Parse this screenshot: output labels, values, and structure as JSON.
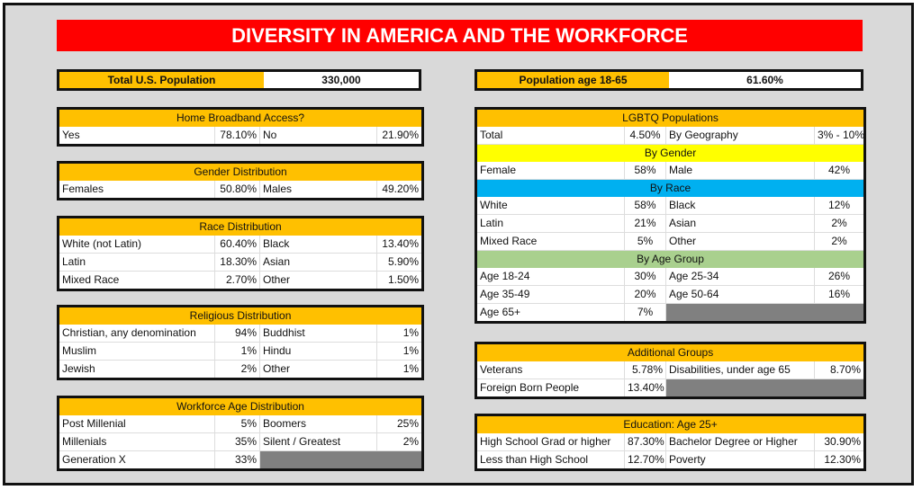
{
  "title": "DIVERSITY IN AMERICA AND THE WORKFORCE",
  "total_population": {
    "label": "Total U.S. Population",
    "value": "330,000"
  },
  "population_18_65": {
    "label": "Population age 18-65",
    "value": "61.60%"
  },
  "colors": {
    "header": "#ffc000",
    "title": "#ff0000",
    "by_gender": "#ffff00",
    "by_race": "#00b0f0",
    "by_age": "#a9d08e",
    "empty_cell": "#808080"
  },
  "sections": [
    {
      "id": "broadband",
      "side": "left",
      "top": 0,
      "header": "Home Broadband Access?",
      "rows": [
        [
          "Yes",
          "78.10%",
          "No",
          "21.90%"
        ]
      ]
    },
    {
      "id": "gender",
      "side": "left",
      "header": "Gender Distribution",
      "rows": [
        [
          "Females",
          "50.80%",
          "Males",
          "49.20%"
        ]
      ]
    },
    {
      "id": "race",
      "side": "left",
      "header": "Race Distribution",
      "rows": [
        [
          "White (not Latin)",
          "60.40%",
          "Black",
          "13.40%"
        ],
        [
          "Latin",
          "18.30%",
          "Asian",
          "5.90%"
        ],
        [
          "Mixed Race",
          "2.70%",
          "Other",
          "1.50%"
        ]
      ]
    },
    {
      "id": "religion",
      "side": "left",
      "header": "Religious Distribution",
      "rows": [
        [
          "Christian, any denomination",
          "94%",
          "Buddhist",
          "1%"
        ],
        [
          "Muslim",
          "1%",
          "Hindu",
          "1%"
        ],
        [
          "Jewish",
          "2%",
          "Other",
          "1%"
        ]
      ]
    },
    {
      "id": "workforce",
      "side": "left",
      "header": "Workforce Age Distribution",
      "rows": [
        [
          "Post Millenial",
          "5%",
          "Boomers",
          "25%"
        ],
        [
          "Millenials",
          "35%",
          "Silent / Greatest",
          "2%"
        ],
        [
          "Generation X",
          "33%"
        ]
      ]
    },
    {
      "id": "lgbtq",
      "side": "right",
      "center": true,
      "header": "LGBTQ Populations",
      "rows": [
        [
          "Total",
          "4.50%",
          "By Geography",
          "3% - 10%"
        ],
        {
          "sub": "By Gender",
          "color": "by_gender"
        },
        [
          "Female",
          "58%",
          "Male",
          "42%"
        ],
        {
          "sub": "By Race",
          "color": "by_race"
        },
        [
          "White",
          "58%",
          "Black",
          "12%"
        ],
        [
          "Latin",
          "21%",
          "Asian",
          "2%"
        ],
        [
          "Mixed Race",
          "5%",
          "Other",
          "2%"
        ],
        {
          "sub": "By Age Group",
          "color": "by_age"
        },
        [
          "Age 18-24",
          "30%",
          "Age 25-34",
          "26%"
        ],
        [
          "Age 35-49",
          "20%",
          "Age 50-64",
          "16%"
        ],
        [
          "Age 65+",
          "7%"
        ]
      ]
    },
    {
      "id": "additional",
      "side": "right",
      "header": "Additional Groups",
      "rows": [
        [
          "Veterans",
          "5.78%",
          "Disabilities, under age 65",
          "8.70%"
        ],
        [
          "Foreign Born People",
          "13.40%"
        ]
      ]
    },
    {
      "id": "education",
      "side": "right",
      "header": "Education:  Age 25+",
      "rows": [
        [
          "High School Grad or higher",
          "87.30%",
          "Bachelor Degree or Higher",
          "30.90%"
        ],
        [
          "Less than High School",
          "12.70%",
          "Poverty",
          "12.30%"
        ]
      ]
    }
  ]
}
